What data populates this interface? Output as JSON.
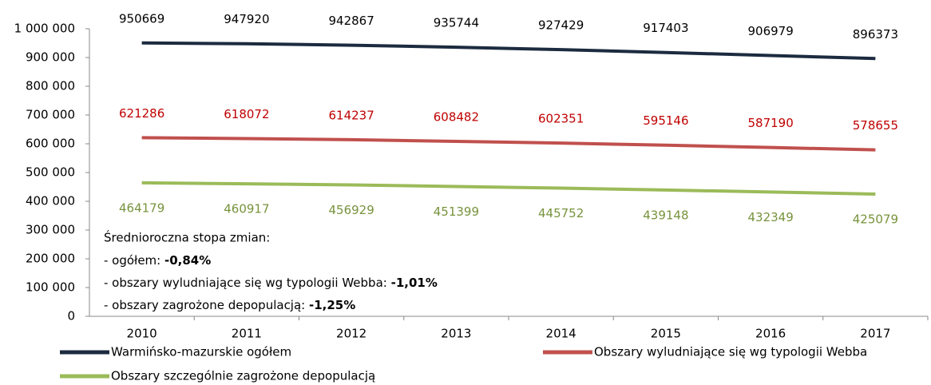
{
  "chart_data": {
    "type": "line",
    "categories": [
      "2010",
      "2011",
      "2012",
      "2013",
      "2014",
      "2015",
      "2016",
      "2017"
    ],
    "series": [
      {
        "name": "Warmińsko-mazurskie ogółem",
        "color": "#1c2b3f",
        "label_color": "#000000",
        "label_position": "above",
        "values": [
          950669,
          947920,
          942867,
          935744,
          927429,
          917403,
          906979,
          896373
        ]
      },
      {
        "name": "Obszary wyludniające się wg typologii Webba",
        "color": "#c0504d",
        "label_color": "#c00000",
        "label_position": "above",
        "values": [
          621286,
          618072,
          614237,
          608482,
          602351,
          595146,
          587190,
          578655
        ]
      },
      {
        "name": "Obszary szczególnie zagrożone depopulacją",
        "color": "#9bbb59",
        "label_color": "#77933c",
        "label_position": "below",
        "values": [
          464179,
          460917,
          456929,
          451399,
          445752,
          439148,
          432349,
          425079
        ]
      }
    ],
    "ylim": [
      0,
      1000000
    ],
    "yticks": [
      {
        "value": 0,
        "label": "0"
      },
      {
        "value": 100000,
        "label": "100 000"
      },
      {
        "value": 200000,
        "label": "200 000"
      },
      {
        "value": 300000,
        "label": "300 000"
      },
      {
        "value": 400000,
        "label": "400 000"
      },
      {
        "value": 500000,
        "label": "500 000"
      },
      {
        "value": 600000,
        "label": "600 000"
      },
      {
        "value": 700000,
        "label": "700 000"
      },
      {
        "value": 800000,
        "label": "800 000"
      },
      {
        "value": 900000,
        "label": "900 000"
      },
      {
        "value": 1000000,
        "label": "1 000 000"
      }
    ],
    "annotation": {
      "heading": "Średnioroczna stopa zmian:",
      "lines": [
        {
          "text": "- ogółem: ",
          "value": "-0,84%"
        },
        {
          "text": "- obszary wyludniające się wg typologii Webba: ",
          "value": "-1,01%"
        },
        {
          "text": "- obszary zagrożone depopulacją: ",
          "value": "-1,25%"
        }
      ]
    }
  }
}
